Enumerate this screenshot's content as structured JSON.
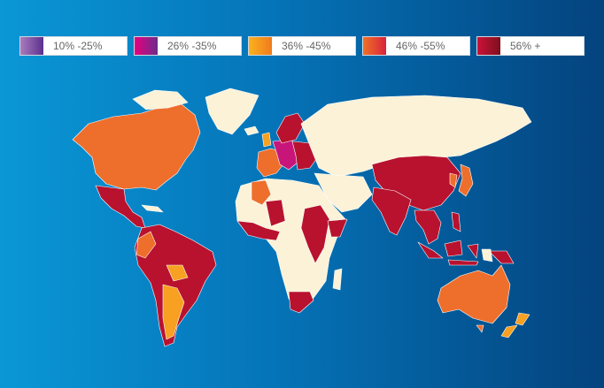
{
  "legend": [
    {
      "label": "10% -25%",
      "color_from": "#a77dbd",
      "color_to": "#5d2f8e"
    },
    {
      "label": "26% -35%",
      "color_from": "#e6007e",
      "color_to": "#6b2d8c"
    },
    {
      "label": "36% -45%",
      "color_from": "#fbb21d",
      "color_to": "#f07a1e"
    },
    {
      "label": "46% -55%",
      "color_from": "#f07026",
      "color_to": "#d8243d"
    },
    {
      "label": "56% +",
      "color_from": "#cc1237",
      "color_to": "#7d0f1e"
    }
  ],
  "colors": {
    "no_data": "#fbf2d8",
    "range_36_45": "#f7a021",
    "range_46_55": "#ee6e2c",
    "range_56_plus": "#b8122f",
    "range_26_35": "#c8157a",
    "background_from": "#0a97d6",
    "background_to": "#04437e"
  }
}
